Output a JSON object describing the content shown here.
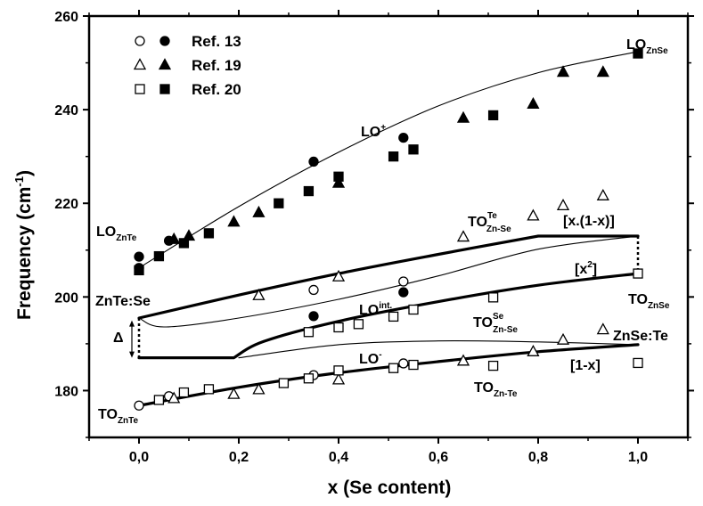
{
  "chart_data": {
    "type": "scatter",
    "title": "",
    "xlabel": "x (Se content)",
    "ylabel": "Frequency (cm -1)",
    "ylabel_parts": {
      "main": "Frequency (cm",
      "sup": "-1",
      "close": ")"
    },
    "xlim": [
      -0.1,
      1.1
    ],
    "ylim": [
      170,
      260
    ],
    "x_ticks": [
      0.0,
      0.2,
      0.4,
      0.6,
      0.8,
      1.0
    ],
    "x_tick_labels": [
      "0,0",
      "0,2",
      "0,4",
      "0,6",
      "0,8",
      "1,0"
    ],
    "y_ticks": [
      180,
      200,
      220,
      240,
      260
    ],
    "y_tick_labels": [
      "180",
      "200",
      "220",
      "240",
      "260"
    ],
    "legend": [
      {
        "label": "Ref. 13",
        "open": "circle",
        "filled": "circle"
      },
      {
        "label": "Ref. 19",
        "open": "triangle",
        "filled": "triangle"
      },
      {
        "label": "Ref. 20",
        "open": "square",
        "filled": "square"
      }
    ],
    "series": [
      {
        "name": "Ref. 13 LO",
        "marker": "circle",
        "filled": true,
        "points": [
          [
            0.0,
            208.6
          ],
          [
            0.0,
            206.2
          ],
          [
            0.06,
            212.0
          ],
          [
            0.35,
            228.9
          ],
          [
            0.53,
            234.0
          ],
          [
            0.35,
            195.9
          ],
          [
            0.53,
            201.0
          ]
        ]
      },
      {
        "name": "Ref. 13 TO",
        "marker": "circle",
        "filled": false,
        "points": [
          [
            0.0,
            176.8
          ],
          [
            0.06,
            178.8
          ],
          [
            0.35,
            201.5
          ],
          [
            0.53,
            203.3
          ],
          [
            0.35,
            183.3
          ],
          [
            0.53,
            185.8
          ]
        ]
      },
      {
        "name": "Ref. 19 LO",
        "marker": "triangle",
        "filled": true,
        "points": [
          [
            0.07,
            212.3
          ],
          [
            0.1,
            213.0
          ],
          [
            0.19,
            216.0
          ],
          [
            0.24,
            218.0
          ],
          [
            0.4,
            224.3
          ],
          [
            0.65,
            238.2
          ],
          [
            0.79,
            241.2
          ],
          [
            0.85,
            248.0
          ],
          [
            0.93,
            248.0
          ]
        ]
      },
      {
        "name": "Ref. 19 TO",
        "marker": "triangle",
        "filled": false,
        "points": [
          [
            0.07,
            178.3
          ],
          [
            0.19,
            179.2
          ],
          [
            0.24,
            180.2
          ],
          [
            0.4,
            182.3
          ],
          [
            0.65,
            186.3
          ],
          [
            0.79,
            188.3
          ],
          [
            0.85,
            190.8
          ],
          [
            0.93,
            193.0
          ],
          [
            0.24,
            200.3
          ],
          [
            0.4,
            204.3
          ],
          [
            0.65,
            212.8
          ],
          [
            0.79,
            217.3
          ],
          [
            0.85,
            219.5
          ],
          [
            0.93,
            221.6
          ]
        ]
      },
      {
        "name": "Ref. 20 LO",
        "marker": "square",
        "filled": true,
        "points": [
          [
            0.0,
            205.7
          ],
          [
            0.04,
            208.7
          ],
          [
            0.09,
            211.5
          ],
          [
            0.14,
            213.6
          ],
          [
            0.28,
            220.0
          ],
          [
            0.34,
            222.6
          ],
          [
            0.4,
            225.7
          ],
          [
            0.51,
            230.0
          ],
          [
            0.55,
            231.5
          ],
          [
            0.71,
            238.8
          ],
          [
            1.0,
            252.0
          ]
        ]
      },
      {
        "name": "Ref. 20 TO",
        "marker": "square",
        "filled": false,
        "points": [
          [
            0.04,
            178.0
          ],
          [
            0.09,
            179.6
          ],
          [
            0.14,
            180.3
          ],
          [
            0.29,
            181.6
          ],
          [
            0.34,
            182.6
          ],
          [
            0.4,
            184.3
          ],
          [
            0.44,
            194.2
          ],
          [
            0.51,
            184.8
          ],
          [
            0.55,
            185.5
          ],
          [
            0.71,
            185.3
          ],
          [
            1.0,
            185.9
          ],
          [
            0.34,
            192.5
          ],
          [
            0.4,
            193.5
          ],
          [
            0.51,
            195.8
          ],
          [
            0.55,
            197.3
          ],
          [
            0.71,
            199.9
          ],
          [
            1.0,
            205.0
          ]
        ]
      }
    ],
    "curves": [
      {
        "name": "LO+",
        "weight": "thin",
        "points": [
          [
            0.0,
            206.2
          ],
          [
            0.2,
            219.3
          ],
          [
            0.4,
            230.9
          ],
          [
            0.6,
            240.8
          ],
          [
            0.8,
            247.9
          ],
          [
            1.0,
            252.4
          ]
        ]
      },
      {
        "name": "[x.(1-x)] upper",
        "weight": "thick",
        "points": [
          [
            0.0,
            195.5
          ],
          [
            0.2,
            200.4
          ],
          [
            0.4,
            205.0
          ],
          [
            0.6,
            209.1
          ],
          [
            0.8,
            213.0
          ],
          [
            1.0,
            213.0
          ]
        ]
      },
      {
        "name": "[x.(1-x)] lower",
        "weight": "thin",
        "points": [
          [
            0.0,
            195.5
          ],
          [
            0.05,
            193.6
          ],
          [
            0.2,
            195.5
          ],
          [
            0.4,
            199.5
          ],
          [
            0.6,
            204.5
          ],
          [
            0.8,
            210.2
          ],
          [
            1.0,
            213.0
          ]
        ]
      },
      {
        "name": "[x2]",
        "weight": "thick",
        "points": [
          [
            0.0,
            187.0
          ],
          [
            0.19,
            187.0
          ],
          [
            0.25,
            190.5
          ],
          [
            0.4,
            194.8
          ],
          [
            0.6,
            199.0
          ],
          [
            0.8,
            202.5
          ],
          [
            1.0,
            205.0
          ]
        ]
      },
      {
        "name": "LO int thin",
        "weight": "thin",
        "points": [
          [
            0.2,
            187.0
          ],
          [
            0.4,
            189.8
          ],
          [
            0.6,
            190.6
          ],
          [
            0.8,
            190.4
          ],
          [
            1.0,
            189.8
          ]
        ]
      },
      {
        "name": "[1-x]",
        "weight": "thick",
        "points": [
          [
            0.0,
            176.8
          ],
          [
            0.2,
            180.7
          ],
          [
            0.4,
            183.8
          ],
          [
            0.6,
            186.2
          ],
          [
            0.8,
            188.3
          ],
          [
            1.0,
            189.8
          ]
        ]
      }
    ],
    "annotations": [
      {
        "main": "LO",
        "sub": "ZnSe",
        "sup": ""
      },
      {
        "main": "LO",
        "sub": "",
        "sup": "+"
      },
      {
        "main": "LO",
        "sub": "ZnTe",
        "sup": ""
      },
      {
        "main": "TO",
        "sub": "Zn-Se",
        "sup": "Te"
      },
      {
        "main": "[x.(1-x)]",
        "sub": "",
        "sup": ""
      },
      {
        "main": "[x",
        "sub": "",
        "sup": "2",
        "tail": "]"
      },
      {
        "main": "TO",
        "sub": "ZnSe",
        "sup": ""
      },
      {
        "main": "ZnTe:Se",
        "sub": "",
        "sup": ""
      },
      {
        "main": "LO",
        "sub": "",
        "sup": "int."
      },
      {
        "main": "TO",
        "sub": "Zn-Se",
        "sup": "Se"
      },
      {
        "main": "Δ",
        "sub": "",
        "sup": ""
      },
      {
        "main": "ZnSe:Te",
        "sub": "",
        "sup": ""
      },
      {
        "main": "LO",
        "sub": "",
        "sup": "-"
      },
      {
        "main": "[1-x]",
        "sub": "",
        "sup": ""
      },
      {
        "main": "TO",
        "sub": "Zn-Te",
        "sup": ""
      },
      {
        "main": "TO",
        "sub": "ZnTe",
        "sup": ""
      }
    ]
  }
}
